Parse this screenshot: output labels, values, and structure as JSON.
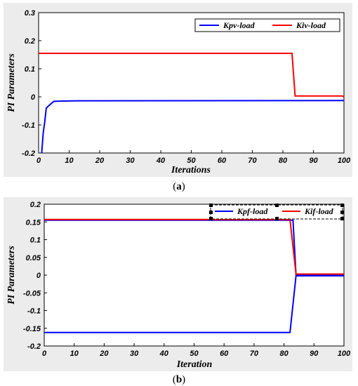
{
  "chart_data": [
    {
      "type": "line",
      "caption_open": "(",
      "caption_letter": "a",
      "caption_close": ")",
      "xlabel": "Iterations",
      "ylabel": "PI Parameters",
      "xlim": [
        0,
        100
      ],
      "ylim": [
        -0.2,
        0.3
      ],
      "xticks": [
        "0",
        "10",
        "20",
        "30",
        "40",
        "50",
        "60",
        "70",
        "80",
        "90",
        "100"
      ],
      "yticks": [
        "-0.2",
        "-0.1",
        "0",
        "0.1",
        "0.2",
        "0.3"
      ],
      "legend_position": "top-right",
      "grid": false,
      "series": [
        {
          "name": "Kpv-load",
          "color": "#0000ff",
          "points": [
            [
              1,
              -0.2
            ],
            [
              1.5,
              -0.13
            ],
            [
              2,
              -0.09
            ],
            [
              2.5,
              -0.04
            ],
            [
              3,
              -0.035
            ],
            [
              4,
              -0.025
            ],
            [
              5,
              -0.016
            ],
            [
              8,
              -0.015
            ],
            [
              13,
              -0.014
            ],
            [
              100,
              -0.013
            ]
          ]
        },
        {
          "name": "Kiv-load",
          "color": "#ff0000",
          "points": [
            [
              0,
              0.155
            ],
            [
              83,
              0.155
            ],
            [
              84,
              0.003
            ],
            [
              99.5,
              0.003
            ],
            [
              100,
              0.0
            ]
          ]
        }
      ]
    },
    {
      "type": "line",
      "caption_open": "(",
      "caption_letter": "b",
      "caption_close": ")",
      "xlabel": "Iteration",
      "ylabel": "PI Parameters",
      "xlim": [
        0,
        100
      ],
      "ylim": [
        -0.2,
        0.2
      ],
      "xticks": [
        "0",
        "10",
        "20",
        "30",
        "40",
        "50",
        "60",
        "70",
        "80",
        "90",
        "100"
      ],
      "yticks": [
        "-0.2",
        "-0.15",
        "-0.1",
        "-0.05",
        "0",
        "0.05",
        "0.1",
        "0.15",
        "0.2"
      ],
      "legend_position": "top-right",
      "grid": false,
      "series": [
        {
          "name": "Kpf-load",
          "color": "#0000ff",
          "points": [
            [
              0,
              0.155
            ],
            [
              83,
              0.155
            ],
            [
              84,
              0.0
            ],
            [
              100,
              0.0
            ]
          ],
          "points_lower": [
            [
              0,
              -0.162
            ],
            [
              82,
              -0.162
            ],
            [
              84,
              -0.002
            ],
            [
              100,
              -0.002
            ]
          ]
        },
        {
          "name": "Kif-load",
          "color": "#ff0000",
          "points": [
            [
              0,
              0.157
            ],
            [
              82,
              0.157
            ],
            [
              84,
              0.003
            ],
            [
              100,
              0.003
            ]
          ]
        }
      ]
    }
  ]
}
